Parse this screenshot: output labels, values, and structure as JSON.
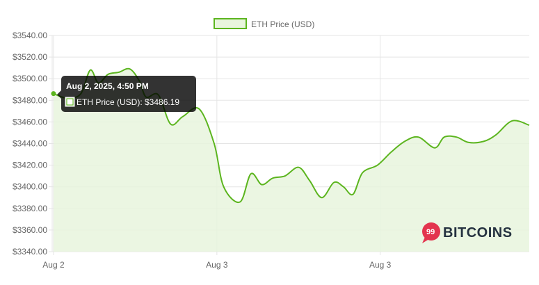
{
  "chart_data": {
    "type": "area",
    "legend": {
      "label": "ETH Price (USD)",
      "placement": "top-center"
    },
    "colors": {
      "line": "#5cb51f",
      "fill": "#e8f5dd",
      "grid": "#e5e5e5",
      "tooltip_bg": "#000000"
    },
    "x_tick_labels": [
      {
        "label": "Aug 2",
        "t": 0.0
      },
      {
        "label": "Aug 3",
        "t": 24.0
      },
      {
        "label": "Aug 3",
        "t": 48.0
      }
    ],
    "y_tick_labels": [
      "$3540.00",
      "$3520.00",
      "$3500.00",
      "$3480.00",
      "$3460.00",
      "$3440.00",
      "$3420.00",
      "$3400.00",
      "$3380.00",
      "$3360.00",
      "$3340.00"
    ],
    "ylim": [
      3340,
      3540
    ],
    "xlim": [
      -0.2,
      69.9
    ],
    "grid": true,
    "series": [
      {
        "name": "ETH Price (USD)",
        "points": [
          [
            0.0,
            3486.19
          ],
          [
            2.0,
            3482
          ],
          [
            4.0,
            3486
          ],
          [
            5.4,
            3508
          ],
          [
            6.6,
            3496
          ],
          [
            8.0,
            3504
          ],
          [
            9.6,
            3506
          ],
          [
            11.2,
            3509
          ],
          [
            12.6,
            3498
          ],
          [
            13.6,
            3483
          ],
          [
            15.4,
            3485
          ],
          [
            17.2,
            3458
          ],
          [
            19.0,
            3465
          ],
          [
            21.4,
            3472
          ],
          [
            23.6,
            3440
          ],
          [
            25.0,
            3400
          ],
          [
            27.4,
            3386
          ],
          [
            29.0,
            3412
          ],
          [
            30.6,
            3402
          ],
          [
            32.2,
            3408
          ],
          [
            34.0,
            3410
          ],
          [
            36.0,
            3418
          ],
          [
            37.6,
            3406
          ],
          [
            39.4,
            3390
          ],
          [
            41.2,
            3404
          ],
          [
            42.6,
            3400
          ],
          [
            44.0,
            3393
          ],
          [
            45.4,
            3413
          ],
          [
            47.6,
            3420
          ],
          [
            49.6,
            3432
          ],
          [
            51.6,
            3442
          ],
          [
            53.6,
            3446
          ],
          [
            56.0,
            3436
          ],
          [
            57.4,
            3446
          ],
          [
            59.2,
            3446
          ],
          [
            61.0,
            3441
          ],
          [
            63.2,
            3442
          ],
          [
            65.0,
            3448
          ],
          [
            67.4,
            3461
          ],
          [
            69.9,
            3457
          ]
        ]
      }
    ],
    "tooltip": {
      "title": "Aug 2, 2025, 4:50 PM",
      "body": "ETH Price (USD): $3486.19",
      "point_index": 0
    }
  },
  "brand": {
    "badge": "99",
    "name": "BITCOINS"
  }
}
